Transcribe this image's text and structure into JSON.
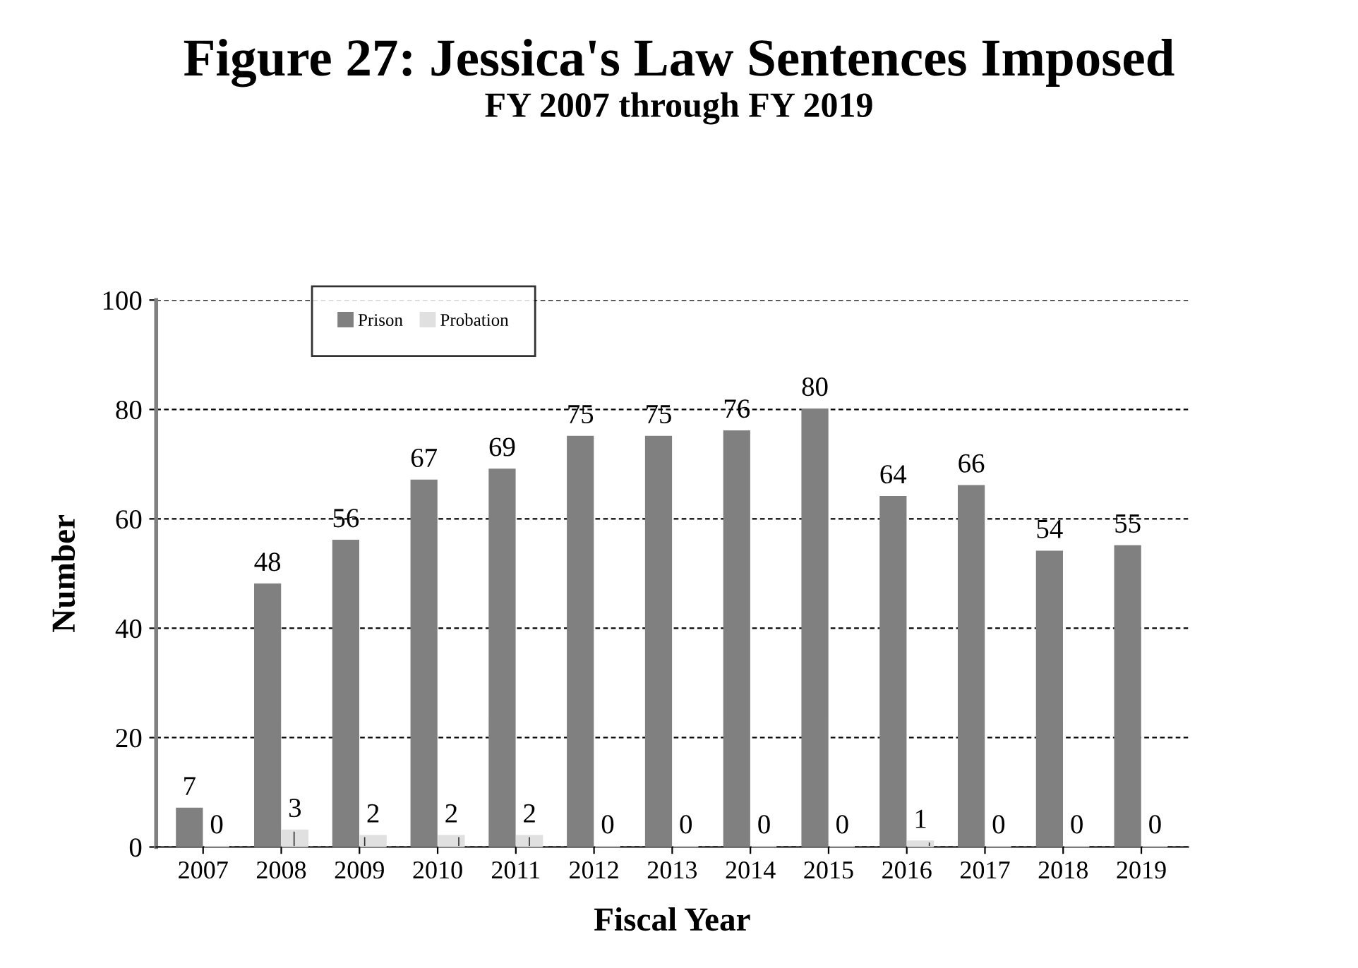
{
  "chart_data": {
    "type": "bar",
    "title": "Figure 27: Jessica's Law Sentences Imposed",
    "subtitle": "FY 2007 through FY 2019",
    "xlabel": "Fiscal Year",
    "ylabel": "Number",
    "categories": [
      "2007",
      "2008",
      "2009",
      "2010",
      "2011",
      "2012",
      "2013",
      "2014",
      "2015",
      "2016",
      "2017",
      "2018",
      "2019"
    ],
    "series": [
      {
        "name": "Prison",
        "color": "#808080",
        "values": [
          7,
          48,
          56,
          67,
          69,
          75,
          75,
          76,
          80,
          64,
          66,
          54,
          55
        ]
      },
      {
        "name": "Probation",
        "color": "#e0e0e0",
        "values": [
          0,
          3,
          2,
          2,
          2,
          0,
          0,
          0,
          0,
          1,
          0,
          0,
          0
        ]
      }
    ],
    "ylim": [
      0,
      100
    ],
    "yticks": [
      0,
      20,
      40,
      60,
      80,
      100
    ],
    "grid": "y",
    "legend": "top left",
    "data_labels": true
  }
}
